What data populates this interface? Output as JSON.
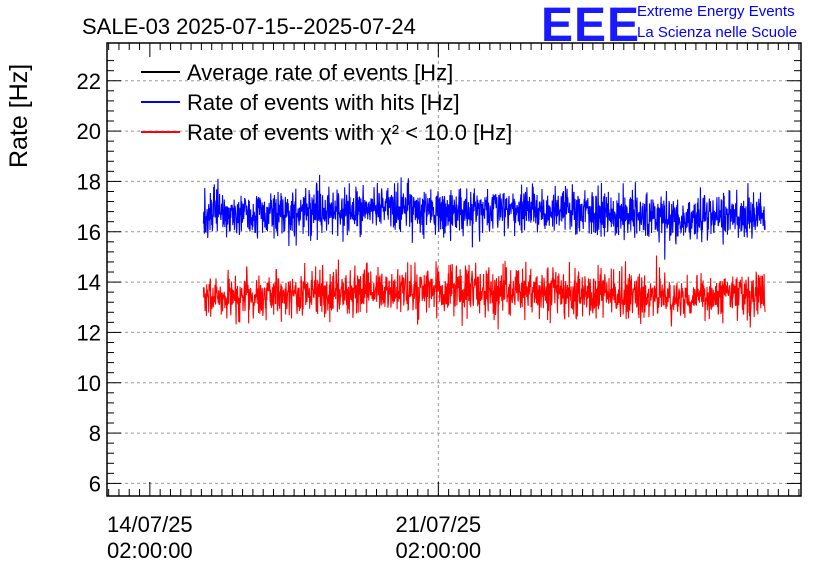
{
  "logo": {
    "mark": "EEE",
    "line1": "Extreme Energy Events",
    "line2": "La Scienza nelle Scuole"
  },
  "chart_data": {
    "type": "line",
    "title": "SALE-03 2025-07-15--2025-07-24",
    "ylabel": "Rate [Hz]",
    "xlabel": "",
    "ylim": [
      5.5,
      23.5
    ],
    "y_ticks": [
      6,
      8,
      10,
      12,
      14,
      16,
      18,
      20,
      22
    ],
    "x_range_days": [
      -1.04,
      15.8
    ],
    "x_ticks": [
      {
        "day": 0,
        "date": "14/07/25",
        "time": "02:00:00"
      },
      {
        "day": 7,
        "date": "21/07/25",
        "time": "02:00:00"
      }
    ],
    "data_range_days": [
      1.3,
      14.93
    ],
    "grid": true,
    "legend_position": "top-left",
    "series": [
      {
        "name": "Average rate of events [Hz]",
        "color": "#000000",
        "values": []
      },
      {
        "name": "Rate of events with hits [Hz]",
        "color": "#0000ff",
        "mean": 16.7,
        "min": 14.6,
        "max": 18.9,
        "profile": [
          [
            1.3,
            16.6
          ],
          [
            2.5,
            16.7
          ],
          [
            4.0,
            16.8
          ],
          [
            5.5,
            16.9
          ],
          [
            7.0,
            16.8
          ],
          [
            8.5,
            16.8
          ],
          [
            10.0,
            16.9
          ],
          [
            11.5,
            16.7
          ],
          [
            13.0,
            16.5
          ],
          [
            14.0,
            16.7
          ],
          [
            14.93,
            16.6
          ]
        ]
      },
      {
        "name": "Rate of events with χ² < 10.0 [Hz]",
        "color": "#ff0000",
        "mean": 13.5,
        "min": 11.5,
        "max": 15.8,
        "profile": [
          [
            1.3,
            13.4
          ],
          [
            2.5,
            13.5
          ],
          [
            4.0,
            13.6
          ],
          [
            5.5,
            13.6
          ],
          [
            7.0,
            13.6
          ],
          [
            8.5,
            13.6
          ],
          [
            10.0,
            13.6
          ],
          [
            11.5,
            13.5
          ],
          [
            13.0,
            13.3
          ],
          [
            14.0,
            13.5
          ],
          [
            14.93,
            13.4
          ]
        ]
      }
    ]
  }
}
